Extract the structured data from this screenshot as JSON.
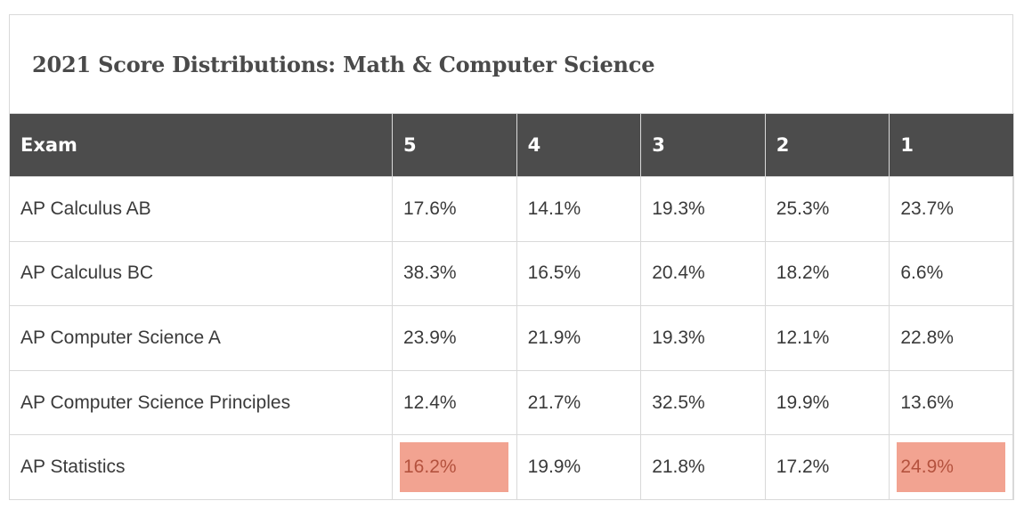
{
  "table": {
    "title": "2021 Score Distributions: Math & Computer Science",
    "headers": [
      "Exam",
      "5",
      "4",
      "3",
      "2",
      "1"
    ],
    "rows": [
      {
        "exam": "AP Calculus AB",
        "values": [
          "17.6%",
          "14.1%",
          "19.3%",
          "25.3%",
          "23.7%"
        ]
      },
      {
        "exam": "AP Calculus BC",
        "values": [
          "38.3%",
          "16.5%",
          "20.4%",
          "18.2%",
          "6.6%"
        ]
      },
      {
        "exam": "AP Computer Science A",
        "values": [
          "23.9%",
          "21.9%",
          "19.3%",
          "12.1%",
          "22.8%"
        ]
      },
      {
        "exam": "AP Computer Science Principles",
        "values": [
          "12.4%",
          "21.7%",
          "32.5%",
          "19.9%",
          "13.6%"
        ]
      },
      {
        "exam": "AP Statistics",
        "values": [
          "16.2%",
          "19.9%",
          "21.8%",
          "17.2%",
          "24.9%"
        ]
      }
    ],
    "highlighted_cells": [
      {
        "row": 4,
        "col": 0
      },
      {
        "row": 4,
        "col": 4
      }
    ],
    "highlight_color": "#f2a391",
    "header_bg": "#4c4c4c"
  }
}
